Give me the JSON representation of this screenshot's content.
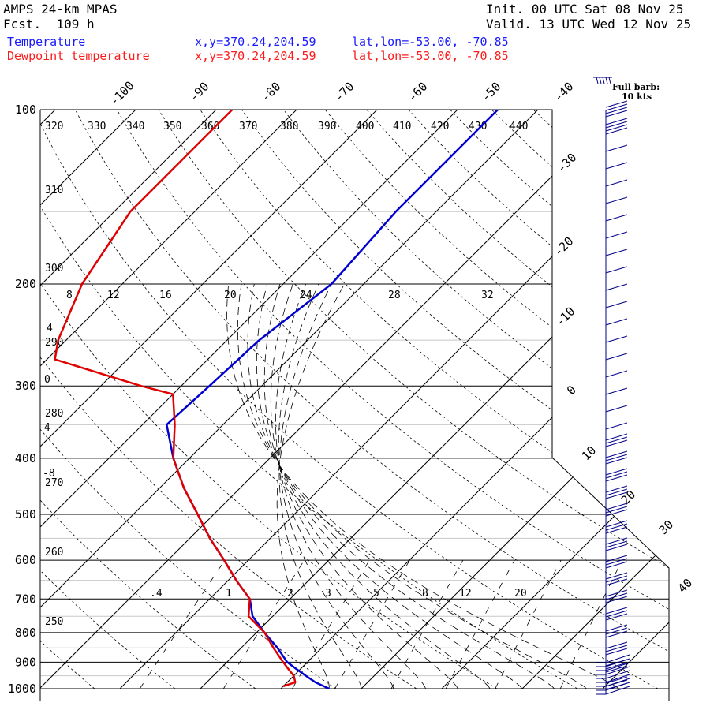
{
  "header": {
    "model": "AMPS 24-km MPAS",
    "forecast": "Fcst.  109 h",
    "init": "Init. 00 UTC Sat 08 Nov 25",
    "valid": "Valid. 13 UTC Wed 12 Nov 25",
    "temp_name": "Temperature",
    "dew_name": "Dewpoint temperature",
    "temp_xy": "x,y=370.24,204.59",
    "dew_xy": "x,y=370.24,204.59",
    "temp_latlon": "lat,lon=-53.00, -70.85",
    "dew_latlon": "lat,lon=-53.00, -70.85"
  },
  "colors": {
    "temperature": "#0000d0",
    "dewpoint": "#e00000",
    "barbs": "#00008b"
  },
  "barb_legend": [
    "Full barb:",
    "10 kts"
  ],
  "chart_data": {
    "type": "skew-t",
    "pressure_levels": [
      "100",
      "200",
      "300",
      "400",
      "500",
      "600",
      "700",
      "800",
      "900",
      "1000"
    ],
    "pressure_levels_hpa": [
      100,
      200,
      300,
      400,
      500,
      600,
      700,
      800,
      900,
      1000
    ],
    "yscale": "log",
    "temperature_ticks": [
      "-100",
      "-90",
      "-80",
      "-70",
      "-60",
      "-50",
      "-40",
      "-30",
      "-20",
      "-10",
      "0",
      "10",
      "20",
      "30",
      "40"
    ],
    "theta_labels": [
      "320",
      "330",
      "340",
      "350",
      "360",
      "370",
      "380",
      "390",
      "400",
      "410",
      "420",
      "430",
      "440",
      "310",
      "300",
      "290",
      "280",
      "270",
      "260",
      "250"
    ],
    "mixing_ratio_labels": [
      ".4",
      "1",
      "2",
      "3",
      "5",
      "8",
      "12",
      "20"
    ],
    "theta_e_labels": [
      "8",
      "12",
      "16",
      "20",
      "24",
      "28",
      "32"
    ],
    "left_misc_labels": [
      "4",
      "0",
      "-4",
      "-8"
    ],
    "series": [
      {
        "name": "Temperature",
        "p": [
          1000,
          975,
          950,
          925,
          900,
          850,
          800,
          750,
          700,
          650,
          600,
          550,
          500,
          450,
          400,
          350,
          300,
          250,
          200,
          150,
          100
        ],
        "t": [
          -4,
          -6.5,
          -8.5,
          -10.5,
          -12.5,
          -15.5,
          -19,
          -22.5,
          -25,
          -29,
          -33,
          -37.5,
          -42,
          -47,
          -52,
          -57,
          -56.5,
          -56,
          -54,
          -55,
          -55
        ]
      },
      {
        "name": "Dewpoint temperature",
        "p": [
          990,
          975,
          950,
          925,
          900,
          850,
          800,
          750,
          700,
          650,
          600,
          550,
          500,
          450,
          400,
          350,
          310,
          300,
          270,
          250,
          200,
          150,
          100
        ],
        "t": [
          -10,
          -9,
          -10,
          -11.5,
          -13,
          -16,
          -19,
          -23,
          -25,
          -29,
          -33,
          -37.5,
          -42,
          -47,
          -52,
          -56,
          -60,
          -65,
          -79,
          -81,
          -85,
          -88,
          -88
        ]
      }
    ]
  }
}
